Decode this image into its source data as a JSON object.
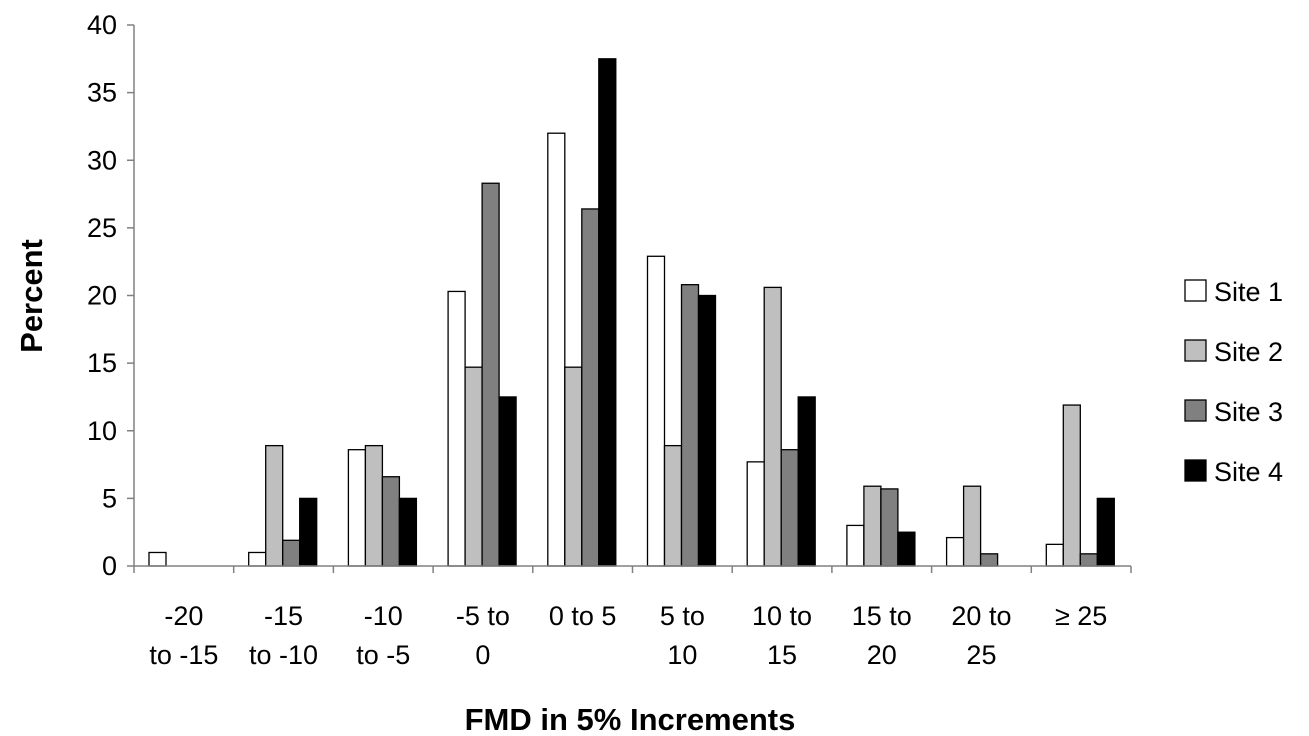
{
  "chart_data": {
    "type": "bar",
    "title": "",
    "xlabel": "FMD in 5% Increments",
    "ylabel": "Percent",
    "ylim": [
      0,
      40
    ],
    "yticks": [
      "0",
      "5",
      "10",
      "15",
      "20",
      "25",
      "30",
      "35",
      "40"
    ],
    "grid": false,
    "legend_position": "right",
    "categories": [
      [
        "-20",
        "to -15"
      ],
      [
        "-15",
        "to -10"
      ],
      [
        "-10",
        "to -5"
      ],
      [
        "-5 to",
        "0"
      ],
      [
        "0 to 5"
      ],
      [
        "5 to",
        "10"
      ],
      [
        "10 to",
        "15"
      ],
      [
        "15 to",
        "20"
      ],
      [
        "20 to",
        "25"
      ],
      [
        "≥ 25"
      ]
    ],
    "series": [
      {
        "name": "Site 1",
        "color": "#ffffff",
        "values": [
          1.0,
          1.0,
          8.6,
          20.3,
          32.0,
          22.9,
          7.7,
          3.0,
          2.1,
          1.6
        ]
      },
      {
        "name": "Site 2",
        "color": "#bfbfbf",
        "values": [
          0,
          8.9,
          8.9,
          14.7,
          14.7,
          8.9,
          20.6,
          5.9,
          5.9,
          11.9
        ]
      },
      {
        "name": "Site 3",
        "color": "#808080",
        "values": [
          0,
          1.9,
          6.6,
          28.3,
          26.4,
          20.8,
          8.6,
          5.7,
          0.9,
          0.9
        ]
      },
      {
        "name": "Site 4",
        "color": "#000000",
        "values": [
          0,
          5.0,
          5.0,
          12.5,
          37.5,
          20.0,
          12.5,
          2.5,
          0,
          5.0
        ]
      }
    ]
  }
}
